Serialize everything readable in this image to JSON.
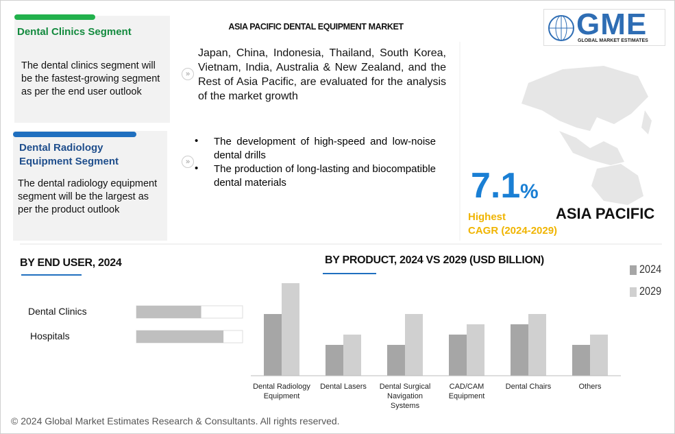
{
  "header": {
    "title": "ASIA PACIFIC DENTAL EQUIPMENT MARKET",
    "logo": "GME",
    "logo_subtitle": "GLOBAL MARKET ESTIMATES"
  },
  "segments": [
    {
      "title": "Dental Clinics Segment",
      "text": "The dental clinics segment will be the fastest-growing segment as per the end user outlook"
    },
    {
      "title": "Dental Radiology Equipment Segment",
      "text": "The dental radiology equipment segment will be the largest as per the product outlook"
    }
  ],
  "summary": "Japan, China, Indonesia, Thailand, South Korea, Vietnam, India, Australia & New Zealand, and the Rest of Asia Pacific, are evaluated for the analysis of the market growth",
  "bullets": [
    "The development of high-speed and low-noise dental drills",
    "The production of long-lasting and biocompatible dental materials"
  ],
  "cagr": {
    "value": 7.1,
    "unit": "%",
    "label": "Highest",
    "period": "CAGR (2024-2029)",
    "region": "ASIA PACIFIC"
  },
  "chart_data": [
    {
      "type": "barh",
      "title": "BY END USER, 2024",
      "categories": [
        "Dental Clinics",
        "Hospitals"
      ],
      "values": [
        61,
        82
      ],
      "xlim": [
        0,
        100
      ],
      "color": "#bfbfbf"
    },
    {
      "type": "bar",
      "title": "BY PRODUCT, 2024 VS 2029 (USD BILLION)",
      "categories": [
        "Dental Radiology Equipment",
        "Dental Lasers",
        "Dental Surgical Navigation Systems",
        "CAD/CAM Equipment",
        "Dental Chairs",
        "Others"
      ],
      "series": [
        {
          "name": "2024",
          "color": "#a6a6a6",
          "values": [
            6,
            3,
            3,
            4,
            5,
            3
          ]
        },
        {
          "name": "2029",
          "color": "#d0d0d0",
          "values": [
            9,
            4,
            6,
            5,
            6,
            4
          ]
        }
      ],
      "ylim": [
        0,
        9
      ]
    }
  ],
  "footer": "© 2024 Global Market Estimates Research & Consultants. All rights reserved."
}
